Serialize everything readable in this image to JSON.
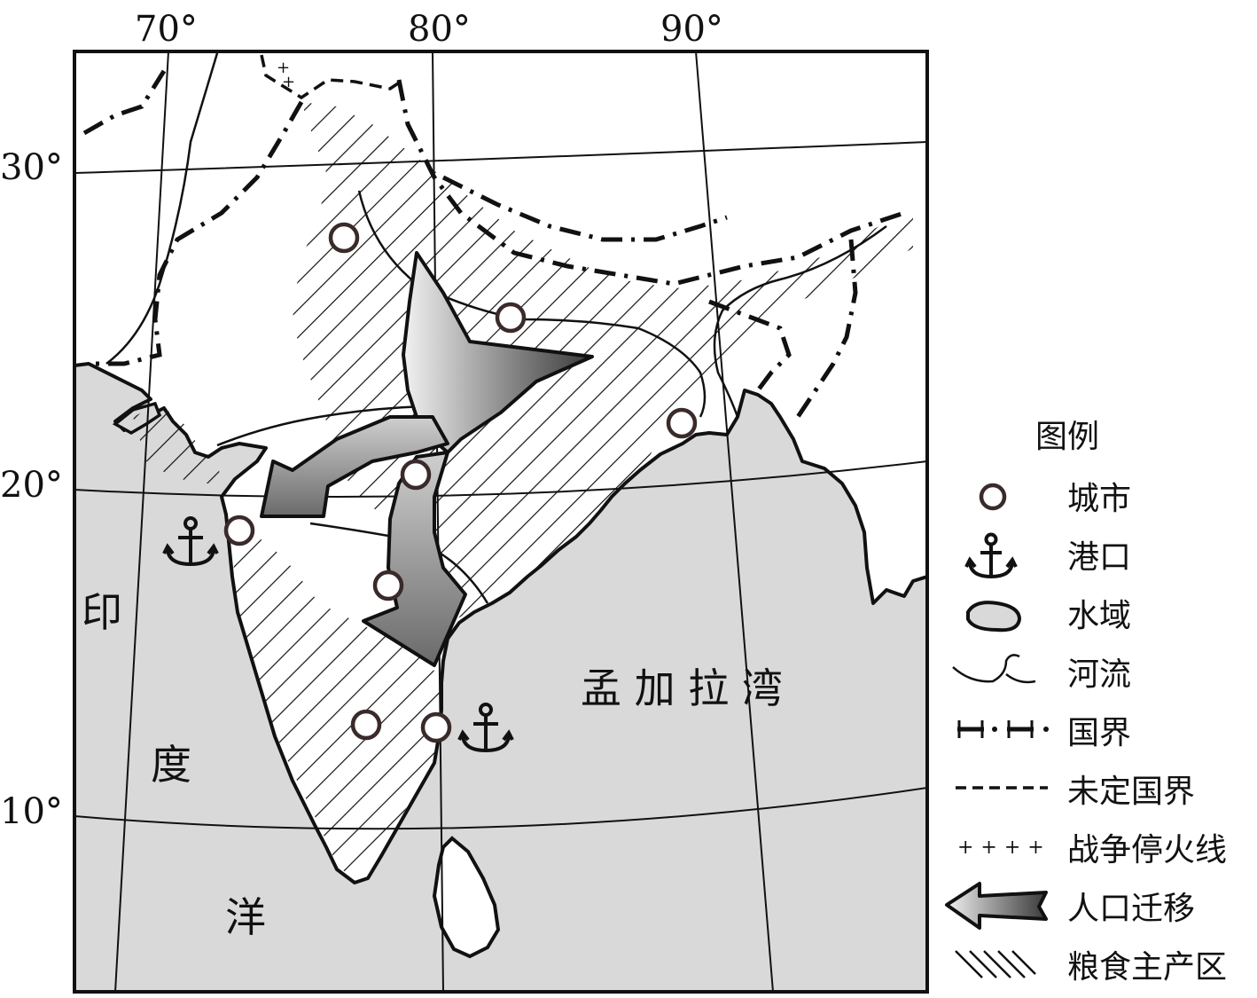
{
  "map": {
    "lon_labels": [
      "70°",
      "80°",
      "90°"
    ],
    "lat_labels": [
      "30°",
      "20°",
      "10°"
    ],
    "water_labels": {
      "indian_ocean": [
        "印",
        "度",
        "洋"
      ],
      "bay_of_bengal": "孟 加 拉 湾"
    },
    "water_fill": "#d9d9d9",
    "arrow_fill": "#6e6e6e"
  },
  "legend": {
    "title": "图例",
    "items": [
      {
        "icon": "city-circle-icon",
        "label": "城市"
      },
      {
        "icon": "anchor-icon",
        "label": "港口"
      },
      {
        "icon": "water-body-icon",
        "label": "水域"
      },
      {
        "icon": "river-icon",
        "label": "河流"
      },
      {
        "icon": "national-border-icon",
        "label": "国界"
      },
      {
        "icon": "undefined-border-icon",
        "label": "未定国界"
      },
      {
        "icon": "ceasefire-line-icon",
        "label": "战争停火线"
      },
      {
        "icon": "migration-arrow-icon",
        "label": "人口迁移"
      },
      {
        "icon": "grain-area-hatch-icon",
        "label": "粮食主产区"
      }
    ]
  }
}
